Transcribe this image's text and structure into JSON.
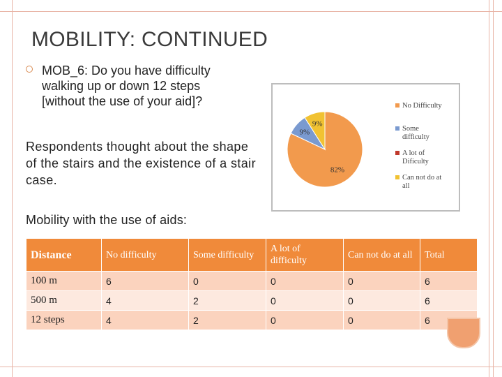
{
  "slide": {
    "title": "MOBILITY: CONTINUED",
    "bullet": "MOB_6: Do you have difficulty walking up or down 12 steps [without the use of your aid]?",
    "paragraph": "Respondents thought about the shape of the stairs and the existence of a stair case.",
    "paragraph2": "Mobility with the use of aids:"
  },
  "colors": {
    "accent": "#f08a3a",
    "row_dark": "#fbd3be",
    "row_light": "#fde9df",
    "pie_no_difficulty": "#f29a4d",
    "pie_some_difficulty": "#7a9ad0",
    "pie_a_lot": "#c0392b",
    "pie_can_not": "#f1c232"
  },
  "chart_data": {
    "type": "pie",
    "categories": [
      "No Difficulty",
      "Some difficulty",
      "A lot of Dificulty",
      "Can not do at all"
    ],
    "values": [
      82,
      9,
      0,
      9
    ],
    "labels": [
      "82%",
      "9%",
      "",
      "9%"
    ],
    "legend": [
      "No Difficulty",
      "Some difficulty",
      "A lot of Dificulty",
      "Can not do at all"
    ],
    "legend_position": "right"
  },
  "table": {
    "headers": [
      "Distance",
      "No difficulty",
      "Some difficulty",
      "A lot of difficulty",
      "Can not do at all",
      "Total"
    ],
    "rows": [
      [
        "100 m",
        "6",
        "0",
        "0",
        "0",
        "6"
      ],
      [
        "500 m",
        "4",
        "2",
        "0",
        "0",
        "6"
      ],
      [
        "12 steps",
        "4",
        "2",
        "0",
        "0",
        "6"
      ]
    ]
  }
}
